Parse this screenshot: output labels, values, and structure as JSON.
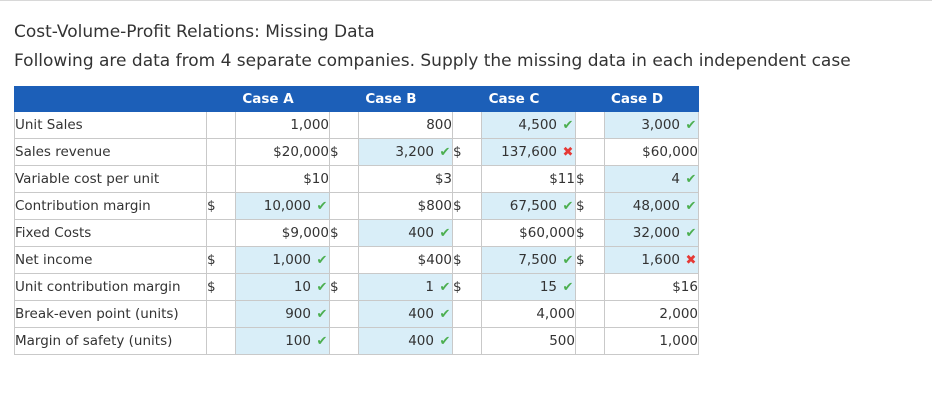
{
  "title": "Cost-Volume-Profit Relations: Missing Data",
  "subtitle": "Following are data from 4 separate companies. Supply the missing data in each independent case",
  "columns": [
    "Case A",
    "Case B",
    "Case C",
    "Case D"
  ],
  "rows": [
    {
      "label": "Unit Sales",
      "cells": [
        {
          "dollar": "",
          "value": "1,000",
          "mark": "",
          "input": false
        },
        {
          "dollar": "",
          "value": "800",
          "mark": "",
          "input": false
        },
        {
          "dollar": "",
          "value": "4,500",
          "mark": "✔",
          "input": true
        },
        {
          "dollar": "",
          "value": "3,000",
          "mark": "✔",
          "input": true
        }
      ]
    },
    {
      "label": "Sales revenue",
      "cells": [
        {
          "dollar": "",
          "value": "$20,000",
          "mark": "",
          "input": false
        },
        {
          "dollar": "$",
          "value": "3,200",
          "mark": "✔",
          "input": true
        },
        {
          "dollar": "$",
          "value": "137,600",
          "mark": "✖",
          "input": true
        },
        {
          "dollar": "",
          "value": "$60,000",
          "mark": "",
          "input": false
        }
      ]
    },
    {
      "label": "Variable cost per unit",
      "cells": [
        {
          "dollar": "",
          "value": "$10",
          "mark": "",
          "input": false
        },
        {
          "dollar": "",
          "value": "$3",
          "mark": "",
          "input": false
        },
        {
          "dollar": "",
          "value": "$11",
          "mark": "",
          "input": false
        },
        {
          "dollar": "$",
          "value": "4",
          "mark": "✔",
          "input": true
        }
      ]
    },
    {
      "label": "Contribution margin",
      "cells": [
        {
          "dollar": "$",
          "value": "10,000",
          "mark": "✔",
          "input": true
        },
        {
          "dollar": "",
          "value": "$800",
          "mark": "",
          "input": false
        },
        {
          "dollar": "$",
          "value": "67,500",
          "mark": "✔",
          "input": true
        },
        {
          "dollar": "$",
          "value": "48,000",
          "mark": "✔",
          "input": true
        }
      ]
    },
    {
      "label": "Fixed Costs",
      "cells": [
        {
          "dollar": "",
          "value": "$9,000",
          "mark": "",
          "input": false
        },
        {
          "dollar": "$",
          "value": "400",
          "mark": "✔",
          "input": true
        },
        {
          "dollar": "",
          "value": "$60,000",
          "mark": "",
          "input": false
        },
        {
          "dollar": "$",
          "value": "32,000",
          "mark": "✔",
          "input": true
        }
      ]
    },
    {
      "label": "Net income",
      "cells": [
        {
          "dollar": "$",
          "value": "1,000",
          "mark": "✔",
          "input": true
        },
        {
          "dollar": "",
          "value": "$400",
          "mark": "",
          "input": false
        },
        {
          "dollar": "$",
          "value": "7,500",
          "mark": "✔",
          "input": true
        },
        {
          "dollar": "$",
          "value": "1,600",
          "mark": "✖",
          "input": true
        }
      ]
    },
    {
      "label": "Unit contribution margin",
      "cells": [
        {
          "dollar": "$",
          "value": "10",
          "mark": "✔",
          "input": true
        },
        {
          "dollar": "$",
          "value": "1",
          "mark": "✔",
          "input": true
        },
        {
          "dollar": "$",
          "value": "15",
          "mark": "✔",
          "input": true
        },
        {
          "dollar": "",
          "value": "$16",
          "mark": "",
          "input": false
        }
      ]
    },
    {
      "label": "Break-even point (units)",
      "cells": [
        {
          "dollar": "",
          "value": "900",
          "mark": "✔",
          "input": true
        },
        {
          "dollar": "",
          "value": "400",
          "mark": "✔",
          "input": true
        },
        {
          "dollar": "",
          "value": "4,000",
          "mark": "",
          "input": false
        },
        {
          "dollar": "",
          "value": "2,000",
          "mark": "",
          "input": false
        }
      ]
    },
    {
      "label": "Margin of safety (units)",
      "cells": [
        {
          "dollar": "",
          "value": "100",
          "mark": "✔",
          "input": true
        },
        {
          "dollar": "",
          "value": "400",
          "mark": "✔",
          "input": true
        },
        {
          "dollar": "",
          "value": "500",
          "mark": "",
          "input": false
        },
        {
          "dollar": "",
          "value": "1,000",
          "mark": "",
          "input": false
        }
      ]
    }
  ],
  "colors": {
    "header": "#1c5fb8",
    "input_fill": "#d9eef8",
    "correct": "#4caf50",
    "incorrect": "#e53935"
  }
}
